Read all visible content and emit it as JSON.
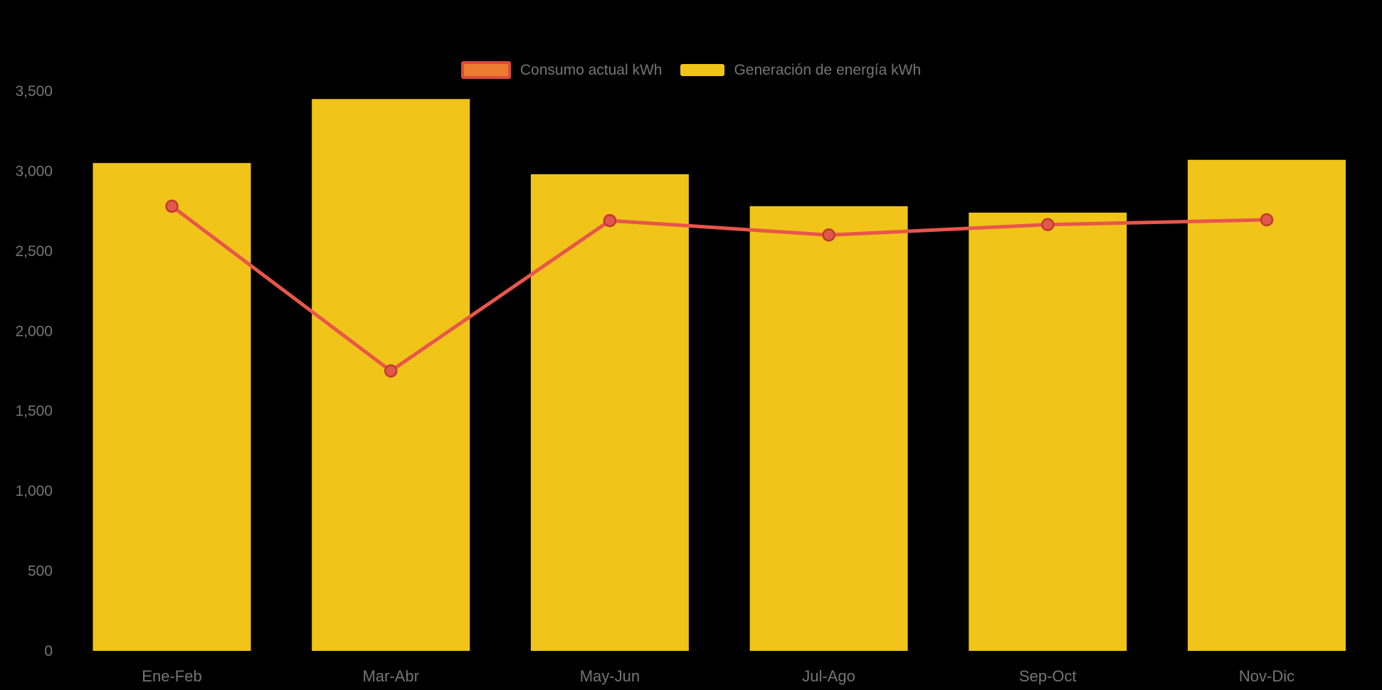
{
  "chart_data": {
    "type": "combo",
    "title": "",
    "xlabel": "",
    "ylabel": "",
    "categories": [
      "Ene-Feb",
      "Mar-Abr",
      "May-Jun",
      "Jul-Ago",
      "Sep-Oct",
      "Nov-Dic"
    ],
    "series": [
      {
        "name": "Consumo actual kWh",
        "type": "line",
        "color": "#e8564a",
        "values": [
          2780,
          1750,
          2690,
          2600,
          2665,
          2695
        ]
      },
      {
        "name": "Generación de energía kWh",
        "type": "bar",
        "color": "#f0c419",
        "values": [
          3050,
          3450,
          2980,
          2780,
          2740,
          3070
        ]
      }
    ],
    "ylim": [
      0,
      3500
    ],
    "ytick_values": [
      0,
      500,
      1000,
      1500,
      2000,
      2500,
      3000,
      3500
    ],
    "ytick_labels": [
      "0",
      "500",
      "1,000",
      "1,500",
      "2,000",
      "2,500",
      "3,000",
      "3,500"
    ],
    "grid": false,
    "legend_position": "top-center"
  },
  "colors": {
    "background": "#000000",
    "axis_text": "#757575",
    "bar_fill": "#f0c419",
    "line_stroke": "#e8564a",
    "marker_fill": "#e2574c",
    "marker_stroke": "#c0392b",
    "legend_line_swatch_fill": "#ee7b30",
    "legend_line_swatch_border": "#dd4b39"
  }
}
